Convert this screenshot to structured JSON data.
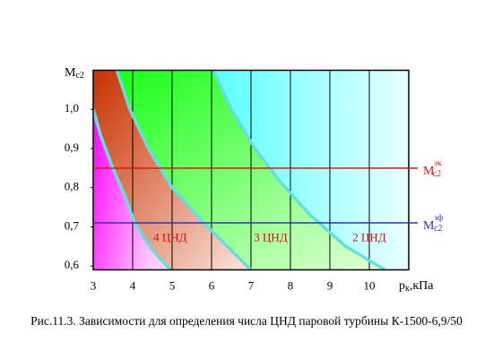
{
  "chart_data": {
    "type": "line",
    "title": "Рис.11.3. Зависимости для определения числа ЦНД паровой турбины К-1500-6,9/50",
    "ylabel": {
      "text": "M",
      "subscript": "c2"
    },
    "xlabel": {
      "text": "p",
      "subscript": "к",
      "suffix": ",кПа"
    },
    "xlim": [
      3,
      11
    ],
    "ylim": [
      0.59,
      1.1
    ],
    "xticks": [
      3,
      4,
      5,
      6,
      7,
      8,
      9,
      10
    ],
    "yticks": [
      {
        "value": 0.6,
        "label": "0,6"
      },
      {
        "value": 0.7,
        "label": "0,7"
      },
      {
        "value": 0.8,
        "label": "0,8"
      },
      {
        "value": 0.9,
        "label": "0,9"
      },
      {
        "value": 1.0,
        "label": "1,0"
      }
    ],
    "grid": true,
    "curve_color": "#66dede",
    "region_colors": [
      [
        "#ff00ff",
        "#ffd0ff"
      ],
      [
        "#c83200",
        "#fae4dc"
      ],
      [
        "#10ff10",
        "#e4ffd8"
      ],
      [
        "#00ffff",
        "#eaffff"
      ]
    ],
    "curves": [
      {
        "x": [
          3,
          3.2,
          3.5,
          3.8,
          4.05,
          4.5,
          4.95
        ],
        "y": [
          1.0,
          0.93,
          0.85,
          0.78,
          0.71,
          0.64,
          0.59
        ]
      },
      {
        "x": [
          3.6,
          3.93,
          4.4,
          5.0,
          5.8,
          6.4,
          7.0
        ],
        "y": [
          1.1,
          1.0,
          0.9,
          0.8,
          0.71,
          0.65,
          0.59
        ]
      },
      {
        "x": [
          6.05,
          6.5,
          7.1,
          7.7,
          8.5,
          9.4,
          10.4
        ],
        "y": [
          1.1,
          1.0,
          0.9,
          0.82,
          0.73,
          0.65,
          0.59
        ]
      }
    ],
    "hlines": [
      {
        "name": "M",
        "subscript": "c2",
        "superscript": "эк",
        "color": "#e81010",
        "value": 0.85
      },
      {
        "name": "M",
        "subscript": "c2",
        "superscript": "эф",
        "color": "#3030c0",
        "value": 0.71
      }
    ],
    "annotations": [
      {
        "text": "4 ЦНД",
        "x": 4.95,
        "y": 0.67
      },
      {
        "text": "3 ЦНД",
        "x": 7.5,
        "y": 0.67
      },
      {
        "text": "2 ЦНД",
        "x": 10.0,
        "y": 0.67
      }
    ],
    "annotation_color": "#d01010"
  }
}
